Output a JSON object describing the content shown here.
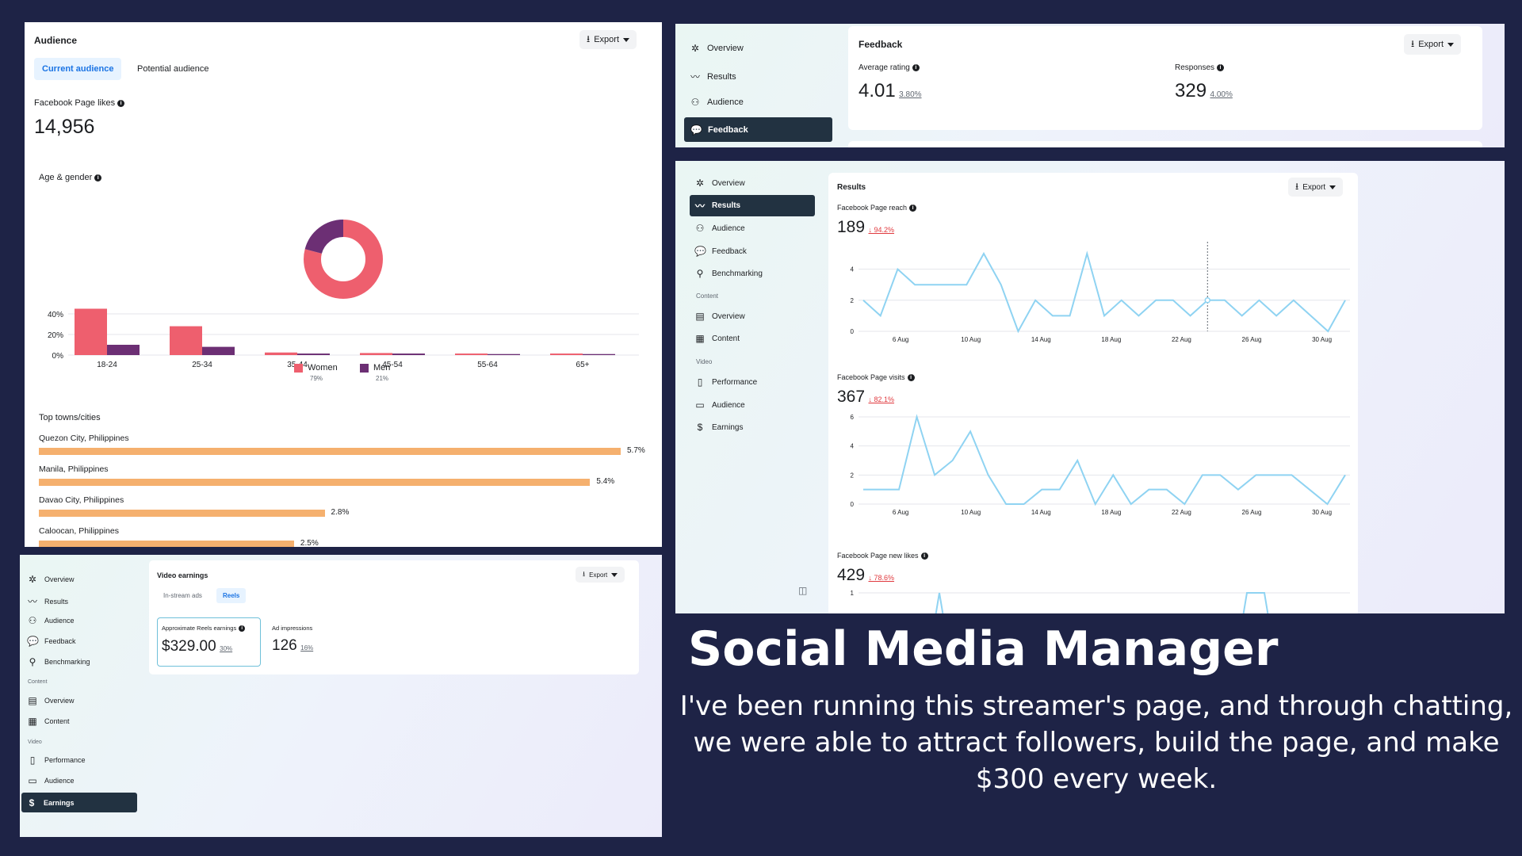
{
  "audience": {
    "title": "Audience",
    "export_label": "Export",
    "tabs": [
      "Current audience",
      "Potential audience"
    ],
    "page_likes_label": "Facebook Page likes",
    "page_likes_value": "14,956",
    "age_gender_label": "Age & gender",
    "top_towns_label": "Top towns/cities",
    "legend": {
      "women": "Women",
      "women_pct": "79%",
      "men": "Men",
      "men_pct": "21%"
    },
    "towns": [
      {
        "name": "Quezon City, Philippines",
        "pct": "5.7%",
        "value": 5.7
      },
      {
        "name": "Manila, Philippines",
        "pct": "5.4%",
        "value": 5.4
      },
      {
        "name": "Davao City, Philippines",
        "pct": "2.8%",
        "value": 2.8
      },
      {
        "name": "Caloocan, Philippines",
        "pct": "2.5%",
        "value": 2.5
      }
    ]
  },
  "feedback": {
    "nav": [
      "Overview",
      "Results",
      "Audience",
      "Feedback"
    ],
    "title": "Feedback",
    "export_label": "Export",
    "avg_rating_label": "Average rating",
    "avg_rating_value": "4.01",
    "avg_rating_change": "3.80%",
    "responses_label": "Responses",
    "responses_value": "329",
    "responses_change": "4.00%"
  },
  "results": {
    "nav": [
      "Overview",
      "Results",
      "Audience",
      "Feedback",
      "Benchmarking"
    ],
    "content_section": "Content",
    "content_nav": [
      "Overview",
      "Content"
    ],
    "video_section": "Video",
    "video_nav": [
      "Performance",
      "Audience",
      "Earnings"
    ],
    "title": "Results",
    "export_label": "Export",
    "reach_label": "Facebook Page reach",
    "reach_value": "189",
    "reach_change": "94.2%",
    "visits_label": "Facebook Page visits",
    "visits_value": "367",
    "visits_change": "82.1%",
    "new_likes_label": "Facebook Page new likes",
    "new_likes_value": "429",
    "new_likes_change": "78.6%",
    "x_ticks": [
      "6 Aug",
      "10 Aug",
      "14 Aug",
      "18 Aug",
      "22 Aug",
      "26 Aug",
      "30 Aug"
    ]
  },
  "earnings": {
    "nav": [
      "Overview",
      "Results",
      "Audience",
      "Feedback",
      "Benchmarking"
    ],
    "content_section": "Content",
    "content_nav": [
      "Overview",
      "Content"
    ],
    "video_section": "Video",
    "video_nav": [
      "Performance",
      "Audience",
      "Earnings"
    ],
    "title": "Video earnings",
    "export_label": "Export",
    "tabs": [
      "In-stream ads",
      "Reels"
    ],
    "reels_earnings_label": "Approximate Reels earnings",
    "reels_earnings_value": "$329.00",
    "reels_earnings_change": "30%",
    "ad_impressions_label": "Ad impressions",
    "ad_impressions_value": "126",
    "ad_impressions_change": "16%"
  },
  "promo": {
    "headline": "Social Media Manager",
    "body": "I've been running this streamer's page, and through chatting, we were able to attract followers, build the page, and make $300 every week."
  },
  "colors": {
    "background": "#1e2346",
    "women": "#ee5f6e",
    "men": "#6c2f74",
    "towns_bar": "#f5b06e",
    "line": "#8fd3f2",
    "active_nav": "#223241"
  },
  "chart_data": [
    {
      "type": "pie",
      "title": "Age & gender",
      "categories": [
        "Women",
        "Men"
      ],
      "values": [
        79,
        21
      ]
    },
    {
      "type": "bar",
      "categories": [
        "18-24",
        "25-34",
        "35-44",
        "45-54",
        "55-64",
        "65+"
      ],
      "series": [
        {
          "name": "Women",
          "values": [
            45,
            28,
            2.5,
            2,
            1.5,
            1.5
          ]
        },
        {
          "name": "Men",
          "values": [
            10,
            8,
            1.5,
            1.5,
            1,
            1
          ]
        }
      ],
      "yticks": [
        "0%",
        "20%",
        "40%"
      ],
      "ylim": [
        0,
        50
      ]
    },
    {
      "type": "bar",
      "title": "Top towns/cities",
      "categories": [
        "Quezon City, Philippines",
        "Manila, Philippines",
        "Davao City, Philippines",
        "Caloocan, Philippines"
      ],
      "values": [
        5.7,
        5.4,
        2.8,
        2.5
      ]
    },
    {
      "type": "line",
      "title": "Facebook Page reach",
      "x_ticks": [
        "6 Aug",
        "10 Aug",
        "14 Aug",
        "18 Aug",
        "22 Aug",
        "26 Aug",
        "30 Aug"
      ],
      "ylim": [
        0,
        5
      ],
      "yticks": [
        0,
        2,
        4
      ],
      "values": [
        2,
        1,
        4,
        3,
        3,
        3,
        3,
        5,
        3,
        0,
        2,
        1,
        1,
        5,
        1,
        2,
        1,
        2,
        2,
        1,
        2,
        2,
        1,
        2,
        1,
        2,
        1,
        0,
        2
      ]
    },
    {
      "type": "line",
      "title": "Facebook Page visits",
      "x_ticks": [
        "6 Aug",
        "10 Aug",
        "14 Aug",
        "18 Aug",
        "22 Aug",
        "26 Aug",
        "30 Aug"
      ],
      "ylim": [
        0,
        6
      ],
      "yticks": [
        0,
        2,
        4,
        6
      ],
      "values": [
        1,
        1,
        1,
        6,
        2,
        3,
        5,
        2,
        0,
        0,
        1,
        1,
        3,
        0,
        2,
        0,
        1,
        1,
        0,
        2,
        2,
        1,
        2,
        2,
        2,
        1,
        0,
        2
      ]
    }
  ]
}
